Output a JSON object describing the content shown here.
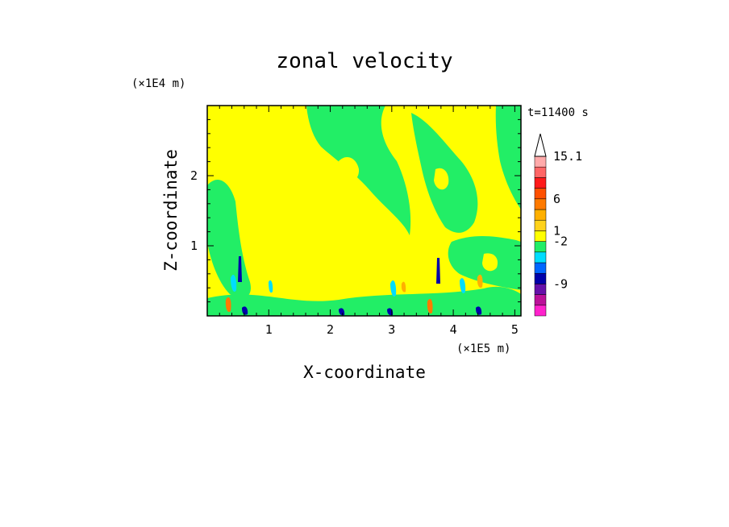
{
  "chart_data": {
    "type": "heatmap",
    "title": "zonal velocity",
    "xlabel": "X-coordinate",
    "ylabel": "Z-coordinate",
    "x_multiplier": "(×1E5 m)",
    "y_multiplier": "(×1E4 m)",
    "time_label": "t=11400 s",
    "xlim": [
      0.0,
      5.1
    ],
    "ylim": [
      0.0,
      3.0
    ],
    "x_ticks": [
      {
        "value": 1,
        "label": "1"
      },
      {
        "value": 2,
        "label": "2"
      },
      {
        "value": 3,
        "label": "3"
      },
      {
        "value": 4,
        "label": "4"
      },
      {
        "value": 5,
        "label": "5"
      }
    ],
    "y_ticks": [
      {
        "value": 1,
        "label": "1"
      },
      {
        "value": 2,
        "label": "2"
      }
    ],
    "colorbar": {
      "levels": [
        {
          "color": "#ff22cc"
        },
        {
          "color": "#bb1199"
        },
        {
          "color": "#6611aa"
        },
        {
          "color": "#0000aa"
        },
        {
          "color": "#0066ff"
        },
        {
          "color": "#00ddff"
        },
        {
          "color": "#22ee66"
        },
        {
          "color": "#ffff00"
        },
        {
          "color": "#ffd21a"
        },
        {
          "color": "#ffb000"
        },
        {
          "color": "#ff7a00"
        },
        {
          "color": "#ff5000"
        },
        {
          "color": "#ff1a1a"
        },
        {
          "color": "#ff6666"
        },
        {
          "color": "#ffaaaa"
        }
      ],
      "labels": [
        {
          "level": 2,
          "text": "-9"
        },
        {
          "level": 6,
          "text": "-2"
        },
        {
          "level": 7,
          "text": "1"
        },
        {
          "level": 10,
          "text": "6"
        },
        {
          "level": 14,
          "text": "15.1"
        }
      ]
    }
  }
}
